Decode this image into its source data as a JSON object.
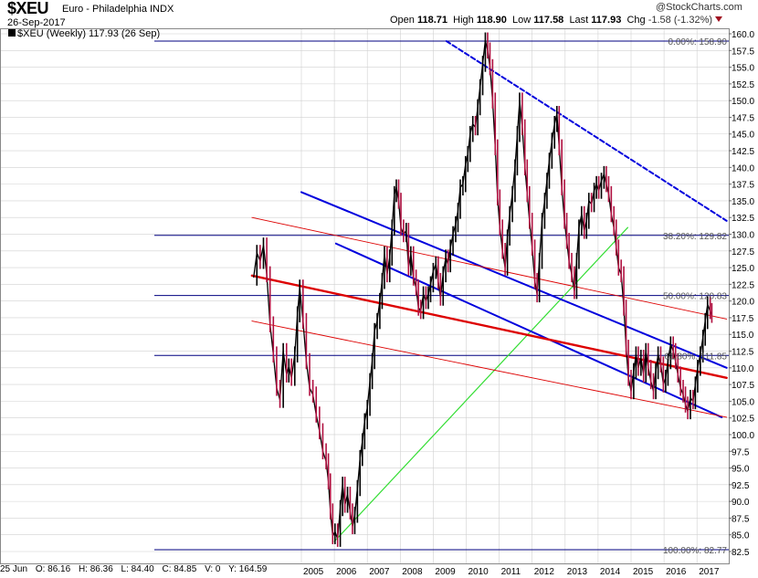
{
  "header": {
    "symbol": "$XEU",
    "name": "Euro - Philadelphia INDX",
    "date": "26-Sep-2017",
    "open_label": "Open",
    "open": "118.71",
    "high_label": "High",
    "high": "118.90",
    "low_label": "Low",
    "low": "117.58",
    "last_label": "Last",
    "last": "117.93",
    "chg_label": "Chg",
    "chg": "-1.58 (-1.32%)",
    "brand": "@StockCharts.com"
  },
  "legend": {
    "text": "$XEU (Weekly) 117.93 (26 Sep)"
  },
  "footer": {
    "date": "25 Jun",
    "o": "O: 86.16",
    "h": "H: 86.36",
    "l": "L: 84.40",
    "c": "C: 84.85",
    "v": "V: 0",
    "y": "Y: 164.59"
  },
  "colors": {
    "price": "#000000",
    "down_candle": "#b01040",
    "fib": "#000080",
    "channel_blue": "#0000dd",
    "channel_red": "#dd0000",
    "trend_green": "#33dd33",
    "grid": "#d0d0d0"
  },
  "chart_data": {
    "type": "line",
    "title": "",
    "xlabel": "",
    "ylabel": "",
    "ylim": [
      82.5,
      160.0
    ],
    "xlim": [
      2003.5,
      2017.9
    ],
    "y_ticks": [
      "82.5",
      "85.0",
      "87.5",
      "90.0",
      "92.5",
      "95.0",
      "97.5",
      "100.0",
      "102.5",
      "105.0",
      "107.5",
      "110.0",
      "112.5",
      "115.0",
      "117.5",
      "120.0",
      "122.5",
      "125.0",
      "127.5",
      "130.0",
      "132.5",
      "135.0",
      "137.5",
      "140.0",
      "142.5",
      "145.0",
      "147.5",
      "150.0",
      "152.5",
      "155.0",
      "157.5",
      "160.0"
    ],
    "x_ticks": [
      {
        "label": "2005",
        "x": 2005.0
      },
      {
        "label": "2006",
        "x": 2006.0
      },
      {
        "label": "2007",
        "x": 2007.0
      },
      {
        "label": "2008",
        "x": 2008.0
      },
      {
        "label": "2009",
        "x": 2009.0
      },
      {
        "label": "2010",
        "x": 2010.0
      },
      {
        "label": "2011",
        "x": 2011.0
      },
      {
        "label": "2012",
        "x": 2012.0
      },
      {
        "label": "2013",
        "x": 2013.0
      },
      {
        "label": "2014",
        "x": 2014.0
      },
      {
        "label": "2015",
        "x": 2015.0
      },
      {
        "label": "2016",
        "x": 2016.0
      },
      {
        "label": "2017",
        "x": 2017.0
      }
    ],
    "grid": true,
    "series": [
      {
        "values": [
          [
            2003.55,
            123.5
          ],
          [
            2003.65,
            127.2
          ],
          [
            2003.75,
            126.0
          ],
          [
            2003.85,
            128.3
          ],
          [
            2003.95,
            124.0
          ],
          [
            2004.05,
            116.5
          ],
          [
            2004.15,
            112.0
          ],
          [
            2004.25,
            107.0
          ],
          [
            2004.35,
            105.2
          ],
          [
            2004.45,
            112.5
          ],
          [
            2004.55,
            109.0
          ],
          [
            2004.62,
            110.2
          ],
          [
            2004.7,
            108.5
          ],
          [
            2004.8,
            112.0
          ],
          [
            2004.88,
            118.0
          ],
          [
            2004.95,
            122.0
          ],
          [
            2005.05,
            117.0
          ],
          [
            2005.15,
            111.0
          ],
          [
            2005.25,
            107.0
          ],
          [
            2005.35,
            106.0
          ],
          [
            2005.45,
            103.0
          ],
          [
            2005.55,
            100.5
          ],
          [
            2005.65,
            97.5
          ],
          [
            2005.75,
            96.0
          ],
          [
            2005.82,
            93.0
          ],
          [
            2005.88,
            88.5
          ],
          [
            2005.95,
            84.8
          ],
          [
            2006.02,
            85.5
          ],
          [
            2006.1,
            84.4
          ],
          [
            2006.18,
            89.0
          ],
          [
            2006.25,
            92.5
          ],
          [
            2006.32,
            89.5
          ],
          [
            2006.4,
            91.0
          ],
          [
            2006.48,
            88.5
          ],
          [
            2006.55,
            86.3
          ],
          [
            2006.62,
            88.0
          ],
          [
            2006.7,
            92.0
          ],
          [
            2006.78,
            96.5
          ],
          [
            2006.85,
            99.0
          ],
          [
            2006.92,
            102.0
          ],
          [
            2007.0,
            104.0
          ],
          [
            2007.08,
            108.0
          ],
          [
            2007.15,
            111.0
          ],
          [
            2007.22,
            115.5
          ],
          [
            2007.3,
            117.0
          ],
          [
            2007.38,
            120.0
          ],
          [
            2007.45,
            123.0
          ],
          [
            2007.52,
            127.0
          ],
          [
            2007.6,
            124.0
          ],
          [
            2007.68,
            126.5
          ],
          [
            2007.75,
            131.0
          ],
          [
            2007.82,
            136.0
          ],
          [
            2007.88,
            137.0
          ],
          [
            2007.95,
            135.0
          ],
          [
            2008.02,
            131.0
          ],
          [
            2008.1,
            130.0
          ],
          [
            2008.18,
            130.5
          ],
          [
            2008.25,
            125.0
          ],
          [
            2008.32,
            127.0
          ],
          [
            2008.4,
            123.5
          ],
          [
            2008.48,
            122.0
          ],
          [
            2008.55,
            119.0
          ],
          [
            2008.62,
            118.5
          ],
          [
            2008.7,
            121.0
          ],
          [
            2008.78,
            120.0
          ],
          [
            2008.85,
            121.0
          ],
          [
            2008.92,
            122.5
          ],
          [
            2009.0,
            124.5
          ],
          [
            2009.08,
            125.5
          ],
          [
            2009.15,
            123.0
          ],
          [
            2009.22,
            120.5
          ],
          [
            2009.3,
            124.0
          ],
          [
            2009.38,
            126.5
          ],
          [
            2009.45,
            125.5
          ],
          [
            2009.52,
            128.0
          ],
          [
            2009.6,
            130.0
          ],
          [
            2009.68,
            131.5
          ],
          [
            2009.75,
            133.5
          ],
          [
            2009.82,
            137.0
          ],
          [
            2009.9,
            137.5
          ],
          [
            2009.98,
            140.5
          ],
          [
            2010.05,
            142.0
          ],
          [
            2010.12,
            145.0
          ],
          [
            2010.2,
            146.5
          ],
          [
            2010.28,
            146.0
          ],
          [
            2010.35,
            149.0
          ],
          [
            2010.42,
            152.0
          ],
          [
            2010.5,
            155.5
          ],
          [
            2010.58,
            159.0
          ],
          [
            2010.65,
            157.5
          ],
          [
            2010.72,
            155.0
          ],
          [
            2010.8,
            150.0
          ],
          [
            2010.88,
            143.0
          ],
          [
            2010.95,
            135.5
          ],
          [
            2011.02,
            131.0
          ],
          [
            2011.1,
            127.5
          ],
          [
            2011.18,
            125.0
          ],
          [
            2011.25,
            129.5
          ],
          [
            2011.32,
            133.0
          ],
          [
            2011.4,
            136.0
          ],
          [
            2011.48,
            140.0
          ],
          [
            2011.55,
            145.0
          ],
          [
            2011.62,
            150.0
          ],
          [
            2011.7,
            146.0
          ],
          [
            2011.78,
            140.0
          ],
          [
            2011.85,
            136.0
          ],
          [
            2011.92,
            132.0
          ],
          [
            2012.0,
            128.0
          ],
          [
            2012.08,
            123.0
          ],
          [
            2012.15,
            121.0
          ],
          [
            2012.22,
            126.0
          ],
          [
            2012.3,
            132.0
          ],
          [
            2012.38,
            135.0
          ],
          [
            2012.45,
            138.0
          ],
          [
            2012.52,
            141.0
          ],
          [
            2012.6,
            144.0
          ],
          [
            2012.68,
            146.5
          ],
          [
            2012.75,
            148.0
          ],
          [
            2012.82,
            143.0
          ],
          [
            2012.9,
            137.0
          ],
          [
            2012.98,
            132.0
          ],
          [
            2013.05,
            129.0
          ],
          [
            2013.12,
            126.0
          ],
          [
            2013.2,
            124.0
          ],
          [
            2013.28,
            121.5
          ],
          [
            2013.35,
            126.0
          ],
          [
            2013.42,
            131.0
          ],
          [
            2013.5,
            133.0
          ],
          [
            2013.58,
            130.5
          ],
          [
            2013.65,
            132.0
          ],
          [
            2013.72,
            135.0
          ],
          [
            2013.8,
            134.5
          ],
          [
            2013.88,
            136.5
          ],
          [
            2013.95,
            137.5
          ],
          [
            2014.02,
            136.5
          ],
          [
            2014.1,
            138.0
          ],
          [
            2014.18,
            139.0
          ],
          [
            2014.25,
            137.5
          ],
          [
            2014.32,
            136.0
          ],
          [
            2014.4,
            133.0
          ],
          [
            2014.48,
            131.0
          ],
          [
            2014.55,
            128.0
          ],
          [
            2014.62,
            125.0
          ],
          [
            2014.7,
            124.0
          ],
          [
            2014.78,
            119.0
          ],
          [
            2014.85,
            113.0
          ],
          [
            2014.92,
            108.5
          ],
          [
            2015.0,
            106.5
          ],
          [
            2015.08,
            109.5
          ],
          [
            2015.15,
            112.0
          ],
          [
            2015.22,
            110.0
          ],
          [
            2015.3,
            111.5
          ],
          [
            2015.38,
            109.0
          ],
          [
            2015.45,
            112.5
          ],
          [
            2015.52,
            110.0
          ],
          [
            2015.6,
            108.0
          ],
          [
            2015.68,
            106.5
          ],
          [
            2015.75,
            109.5
          ],
          [
            2015.82,
            112.0
          ],
          [
            2015.9,
            110.5
          ],
          [
            2015.98,
            107.5
          ],
          [
            2016.05,
            108.5
          ],
          [
            2016.12,
            111.0
          ],
          [
            2016.2,
            113.5
          ],
          [
            2016.28,
            112.5
          ],
          [
            2016.35,
            111.0
          ],
          [
            2016.42,
            109.0
          ],
          [
            2016.5,
            107.0
          ],
          [
            2016.58,
            106.0
          ],
          [
            2016.65,
            104.5
          ],
          [
            2016.72,
            103.5
          ],
          [
            2016.8,
            105.5
          ],
          [
            2016.88,
            105.0
          ],
          [
            2016.95,
            107.5
          ],
          [
            2017.02,
            110.0
          ],
          [
            2017.1,
            112.0
          ],
          [
            2017.18,
            114.5
          ],
          [
            2017.25,
            117.0
          ],
          [
            2017.32,
            119.5
          ],
          [
            2017.4,
            118.5
          ],
          [
            2017.45,
            117.93
          ]
        ]
      }
    ],
    "fib_levels": [
      {
        "label": "0.00%: 158.90",
        "value": 158.9
      },
      {
        "label": "38.20%: 129.82",
        "value": 129.82
      },
      {
        "label": "50.00%: 120.83",
        "value": 120.83
      },
      {
        "label": "61.80%: 111.85",
        "value": 111.85
      },
      {
        "label": "100.00%: 82.77",
        "value": 82.77
      }
    ],
    "trendlines": [
      {
        "kind": "green",
        "from": [
          2006.0,
          84.0
        ],
        "to": [
          2014.9,
          131.0
        ]
      },
      {
        "kind": "blue-dashed",
        "from": [
          2009.4,
          158.9
        ],
        "to": [
          2017.9,
          132.0
        ]
      },
      {
        "kind": "blue",
        "from": [
          2005.0,
          136.3
        ],
        "to": [
          2017.9,
          110.0
        ]
      },
      {
        "kind": "blue",
        "from": [
          2006.05,
          128.6
        ],
        "to": [
          2017.75,
          102.6
        ]
      },
      {
        "kind": "red-thick",
        "from": [
          2003.5,
          123.8
        ],
        "to": [
          2017.9,
          108.5
        ]
      },
      {
        "kind": "red-thin",
        "from": [
          2003.5,
          132.5
        ],
        "to": [
          2017.9,
          117.3
        ]
      },
      {
        "kind": "red-thin",
        "from": [
          2003.5,
          117.0
        ],
        "to": [
          2017.9,
          102.6
        ]
      }
    ],
    "legend": {
      "position": "top-left",
      "entries": [
        "$XEU (Weekly) 117.93 (26 Sep)"
      ]
    }
  }
}
